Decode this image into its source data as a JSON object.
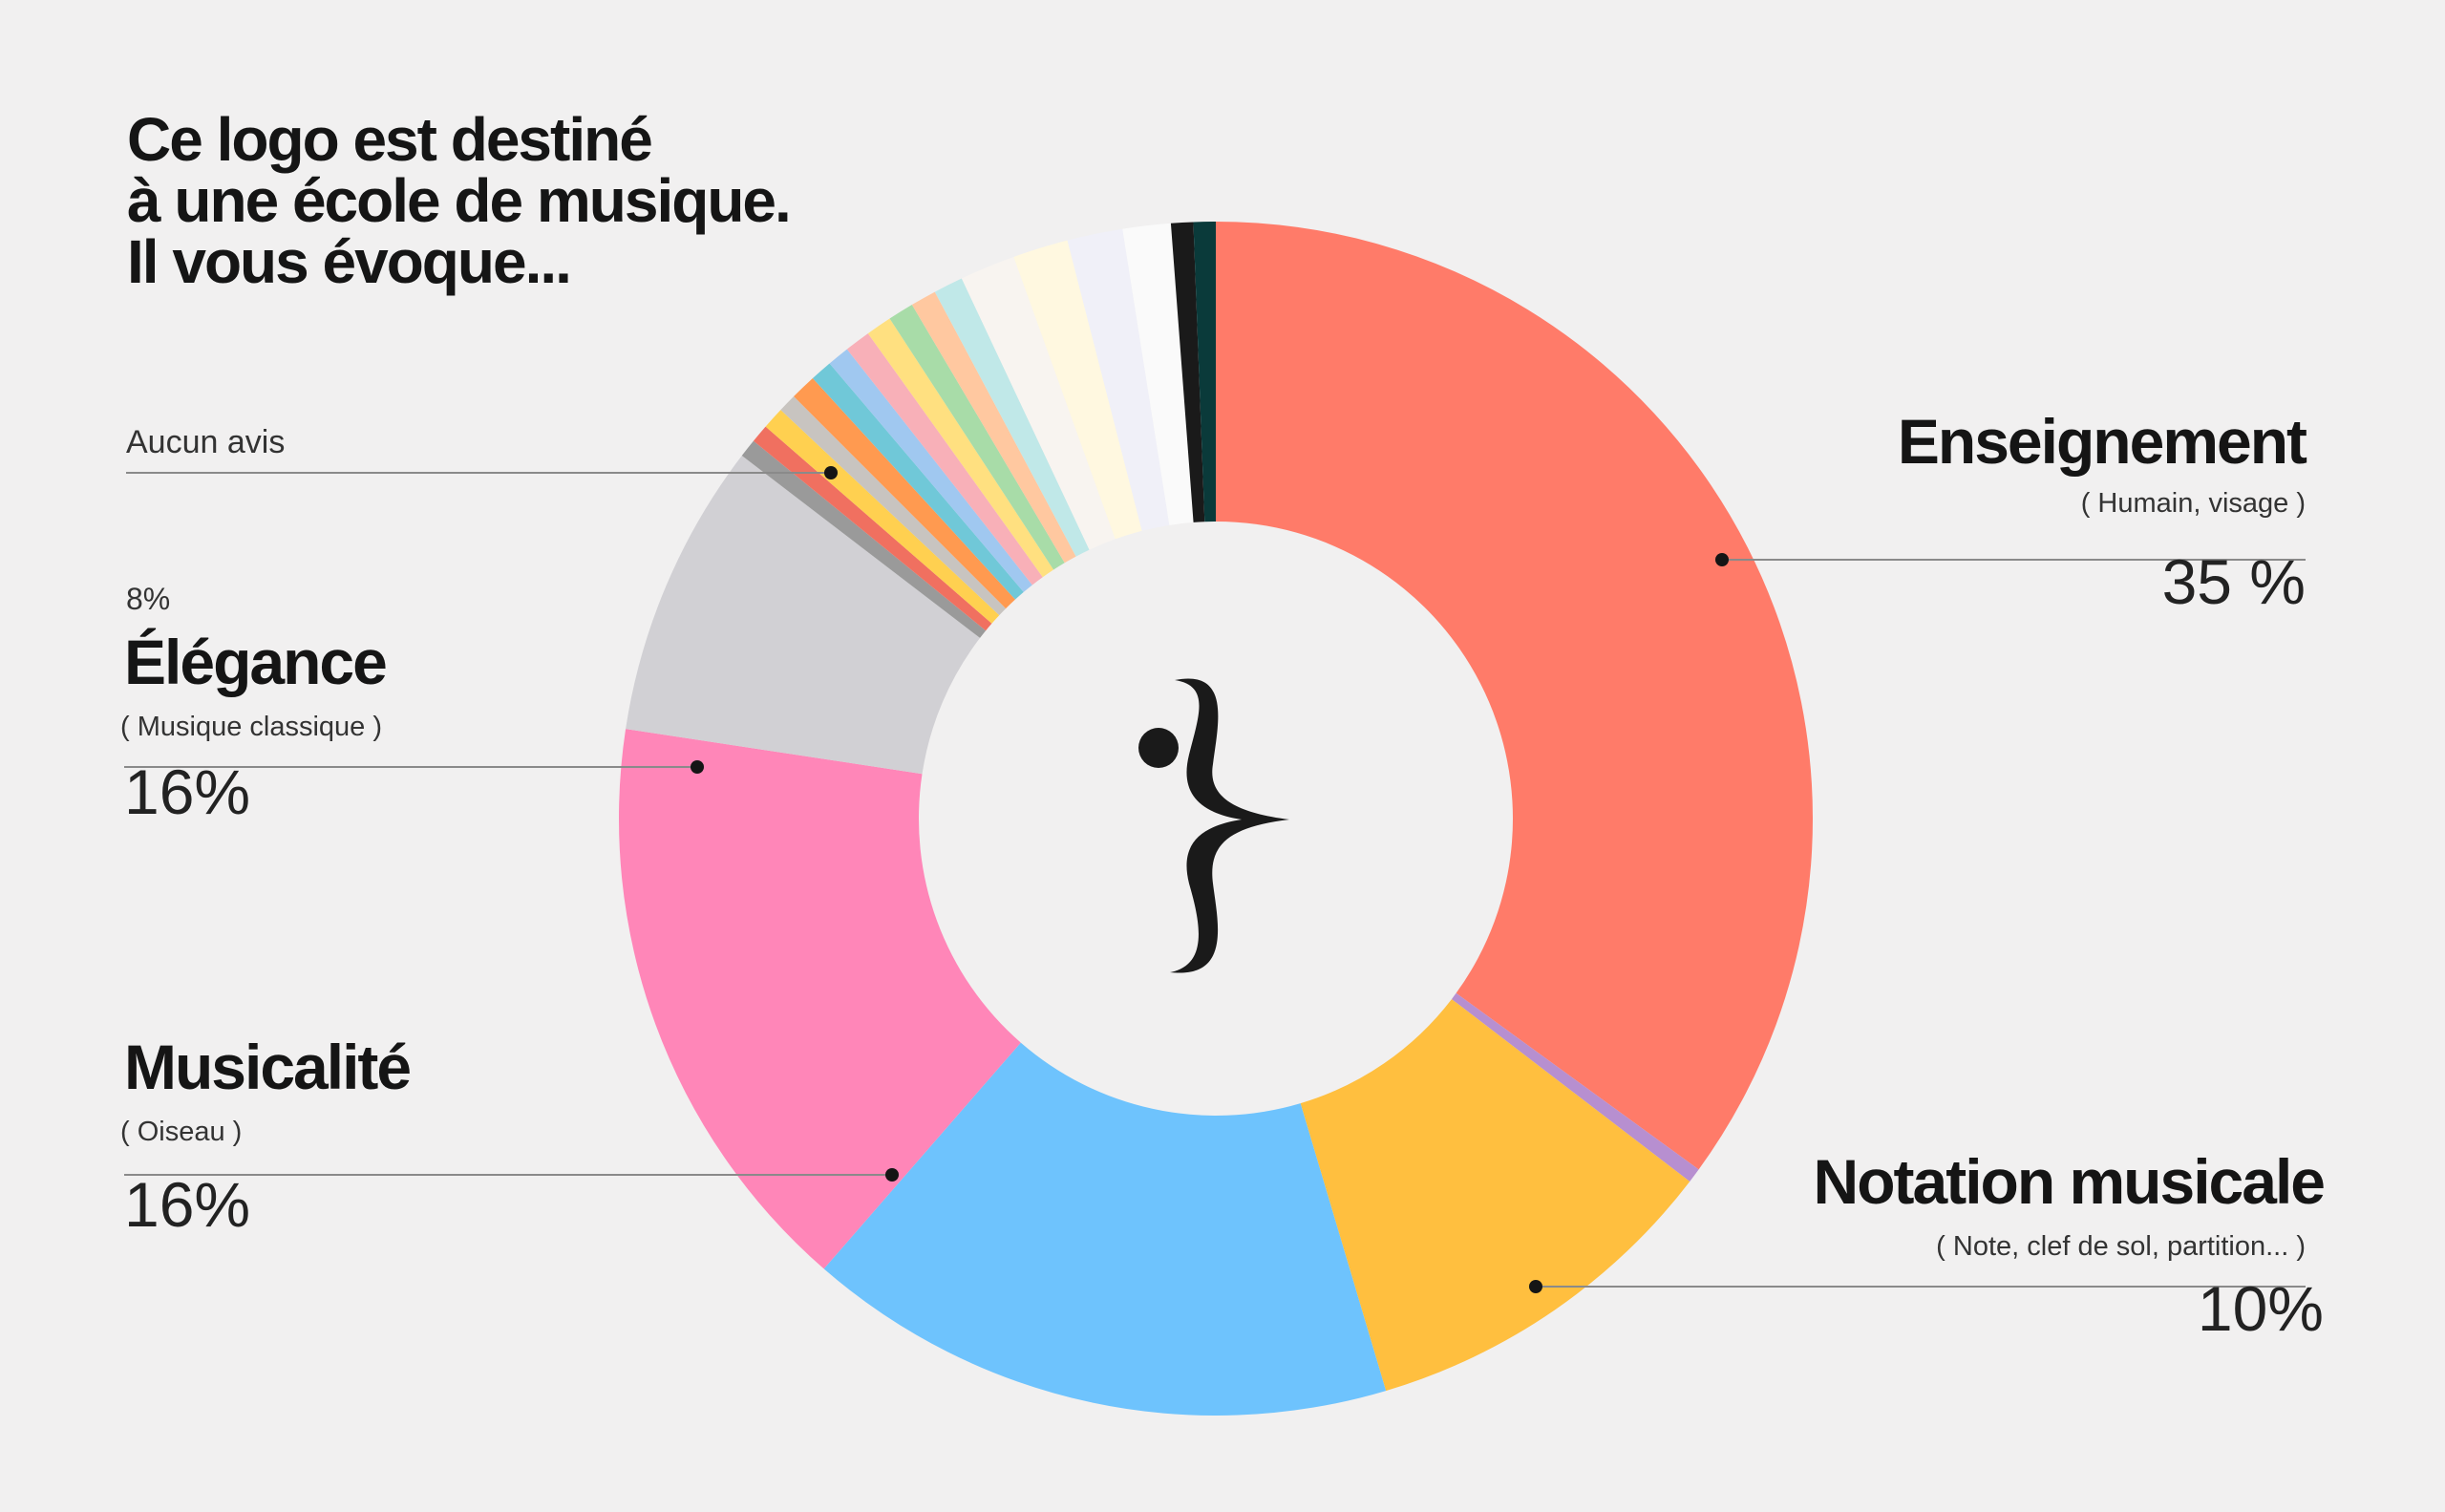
{
  "chart_data": {
    "type": "pie",
    "title": [
      "Ce logo est destiné",
      "à une école de musique.",
      "Il vous évoque..."
    ],
    "categories": [
      "Enseignement",
      null,
      "Notation musicale",
      "Musicalité",
      "Élégance",
      "Aucun avis",
      null,
      null,
      null,
      null,
      null,
      null,
      null,
      null,
      null,
      null,
      null,
      null,
      null,
      null,
      null,
      null,
      null,
      null
    ],
    "descriptions": [
      "( Humain, visage )",
      null,
      "( Note, clef de sol, partition... )",
      "( Oiseau )",
      "( Musique classique )",
      null,
      null,
      null,
      null,
      null,
      null,
      null,
      null,
      null,
      null,
      null,
      null,
      null,
      null,
      null,
      null,
      null,
      null,
      null
    ],
    "values": [
      35,
      0.4,
      10,
      16,
      16,
      8,
      0.5,
      0.5,
      0.6,
      0.5,
      0.7,
      0.6,
      0.6,
      0.7,
      0.7,
      0.7,
      0.7,
      0.8,
      1.5,
      1.5,
      1.5,
      1.3,
      0.6,
      0.6
    ],
    "value_labels": [
      "35 %",
      null,
      "10%",
      "16%",
      "16%",
      "8%",
      null,
      null,
      null,
      null,
      null,
      null,
      null,
      null,
      null,
      null,
      null,
      null,
      null,
      null,
      null,
      null,
      null,
      null
    ],
    "colors": [
      "#ff7b69",
      "#b78fd0",
      "#ffbf3f",
      "#6ec3fd",
      "#ff86b8",
      "#d1d0d4",
      "#9a9a9a",
      "#f07060",
      "#ffd050",
      "#c8c4c0",
      "#ff9a50",
      "#70c8d8",
      "#a0c8f0",
      "#f8b0b8",
      "#ffe080",
      "#a8dca8",
      "#ffc8a0",
      "#c0e8e8",
      "#f8f4f0",
      "#fff8e0",
      "#f0f0f8",
      "#fafafa",
      "#1a1a1a",
      "#0a3a3a"
    ],
    "donut": true
  }
}
